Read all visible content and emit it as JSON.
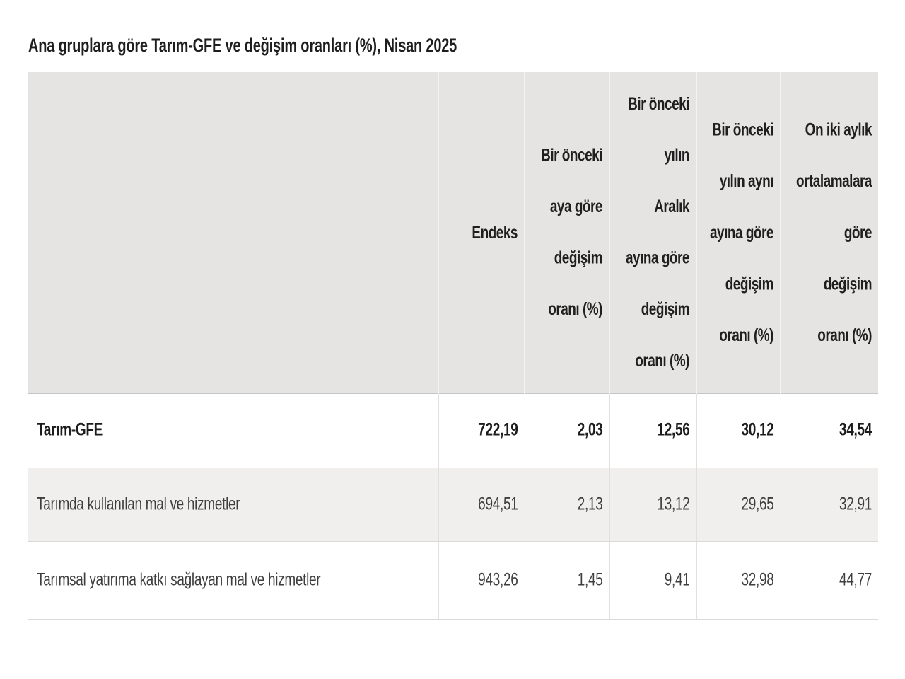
{
  "title": "Ana gruplara göre Tarım-GFE ve değişim oranları (%), Nisan 2025",
  "colors": {
    "header_background": "#e5e4e2",
    "alt_row_background": "#f0efee",
    "row_background": "#ffffff",
    "text_primary": "#1e1e1e",
    "text_secondary": "#3e3e3e",
    "grid_line": "#d9d8d7"
  },
  "display": {
    "headers": {
      "label": "",
      "endeks": "Endeks",
      "monthly": "Bir önceki\naya göre\ndeğişim\noranı (%)",
      "since_december": "Bir önceki\nyılın\nAralık\nayına göre\ndeğişim\noranı (%)",
      "yearly": "Bir önceki\nyılın aynı\nayına göre\ndeğişim\noranı (%)",
      "twelve_month_avg": "On iki aylık\nortalamalara\ngöre\ndeğişim\noranı (%)"
    },
    "rows": [
      {
        "label": "Tarım-GFE",
        "values": [
          "722,19",
          "2,03",
          "12,56",
          "30,12",
          "34,54"
        ]
      },
      {
        "label": "Tarımda kullanılan mal ve hizmetler",
        "values": [
          "694,51",
          "2,13",
          "13,12",
          "29,65",
          "32,91"
        ]
      },
      {
        "label": "Tarımsal yatırıma katkı sağlayan mal ve hizmetler",
        "values": [
          "943,26",
          "1,45",
          "9,41",
          "32,98",
          "44,77"
        ]
      }
    ]
  },
  "chart_data": {
    "type": "table",
    "title": "Ana gruplara göre Tarım-GFE ve değişim oranları (%), Nisan 2025",
    "columns": [
      "",
      "Endeks",
      "Bir önceki aya göre değişim oranı (%)",
      "Bir önceki yılın Aralık ayına göre değişim oranı (%)",
      "Bir önceki yılın aynı ayına göre değişim oranı (%)",
      "On iki aylık ortalamalara göre değişim oranı (%)"
    ],
    "rows": [
      [
        "Tarım-GFE",
        722.19,
        2.03,
        12.56,
        30.12,
        34.54
      ],
      [
        "Tarımda kullanılan mal ve hizmetler",
        694.51,
        2.13,
        13.12,
        29.65,
        32.91
      ],
      [
        "Tarımsal yatırıma katkı sağlayan mal ve hizmetler",
        943.26,
        1.45,
        9.41,
        32.98,
        44.77
      ]
    ],
    "number_format": "decimal-comma",
    "notes": "Bold first row is the overall Tarım-GFE index; header background gray; second data row shaded"
  }
}
